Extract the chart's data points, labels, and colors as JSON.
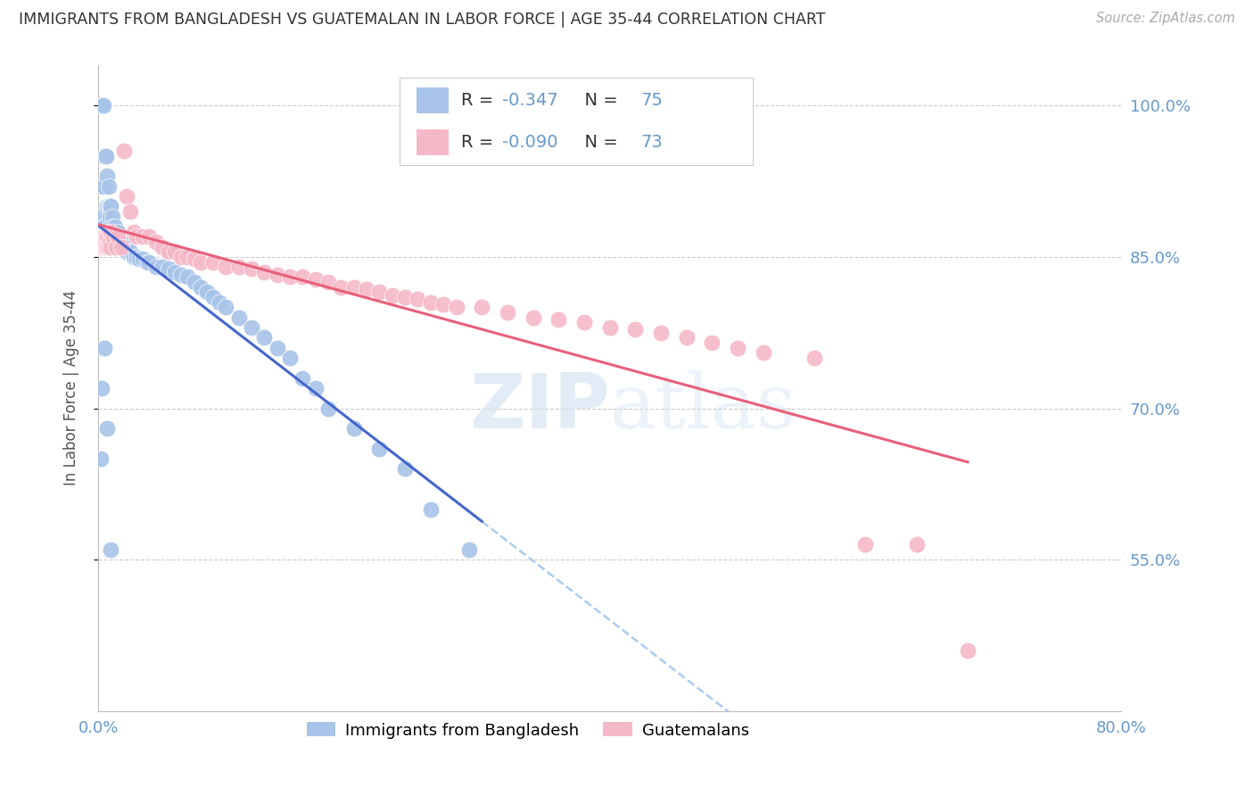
{
  "title": "IMMIGRANTS FROM BANGLADESH VS GUATEMALAN IN LABOR FORCE | AGE 35-44 CORRELATION CHART",
  "source": "Source: ZipAtlas.com",
  "ylabel": "In Labor Force | Age 35-44",
  "xmin": 0.0,
  "xmax": 0.8,
  "ymin": 0.4,
  "ymax": 1.04,
  "yticks": [
    0.55,
    0.7,
    0.85,
    1.0
  ],
  "ytick_labels": [
    "55.0%",
    "70.0%",
    "85.0%",
    "100.0%"
  ],
  "xticks": [
    0.0,
    0.2,
    0.4,
    0.6,
    0.8
  ],
  "xtick_labels": [
    "0.0%",
    "",
    "",
    "",
    "80.0%"
  ],
  "legend_r_bangladesh": "-0.347",
  "legend_n_bangladesh": "75",
  "legend_r_guatemalan": "-0.090",
  "legend_n_guatemalan": "73",
  "blue_color": "#a8c4e8",
  "pink_color": "#f5b8c8",
  "blue_line_color": "#4466cc",
  "pink_line_color": "#e8607a",
  "dashed_line_color": "#aaccee",
  "watermark_color": "#d0e0f0",
  "axis_color": "#bbbbbb",
  "grid_color": "#cccccc",
  "right_label_color": "#6699cc",
  "title_color": "#333333",
  "bangladesh_x": [
    0.001,
    0.002,
    0.002,
    0.003,
    0.003,
    0.004,
    0.004,
    0.005,
    0.005,
    0.005,
    0.006,
    0.006,
    0.007,
    0.007,
    0.007,
    0.008,
    0.008,
    0.008,
    0.009,
    0.009,
    0.009,
    0.01,
    0.01,
    0.01,
    0.011,
    0.011,
    0.012,
    0.012,
    0.013,
    0.013,
    0.014,
    0.015,
    0.015,
    0.016,
    0.017,
    0.018,
    0.02,
    0.022,
    0.025,
    0.028,
    0.03,
    0.032,
    0.035,
    0.038,
    0.04,
    0.045,
    0.05,
    0.055,
    0.06,
    0.065,
    0.07,
    0.075,
    0.08,
    0.085,
    0.09,
    0.095,
    0.1,
    0.11,
    0.12,
    0.13,
    0.14,
    0.15,
    0.16,
    0.17,
    0.18,
    0.2,
    0.22,
    0.24,
    0.26,
    0.29,
    0.002,
    0.003,
    0.005,
    0.007,
    0.01
  ],
  "bangladesh_y": [
    0.87,
    1.0,
    0.92,
    1.0,
    0.89,
    1.0,
    0.88,
    0.95,
    0.92,
    0.88,
    0.95,
    0.87,
    0.93,
    0.9,
    0.87,
    0.92,
    0.9,
    0.87,
    0.9,
    0.89,
    0.86,
    0.9,
    0.88,
    0.86,
    0.89,
    0.87,
    0.88,
    0.87,
    0.88,
    0.87,
    0.87,
    0.875,
    0.86,
    0.87,
    0.86,
    0.865,
    0.86,
    0.855,
    0.855,
    0.85,
    0.85,
    0.848,
    0.848,
    0.845,
    0.845,
    0.84,
    0.84,
    0.838,
    0.835,
    0.832,
    0.83,
    0.825,
    0.82,
    0.815,
    0.81,
    0.805,
    0.8,
    0.79,
    0.78,
    0.77,
    0.76,
    0.75,
    0.73,
    0.72,
    0.7,
    0.68,
    0.66,
    0.64,
    0.6,
    0.56,
    0.65,
    0.72,
    0.76,
    0.68,
    0.56
  ],
  "guatemalan_x": [
    0.001,
    0.002,
    0.002,
    0.003,
    0.003,
    0.004,
    0.004,
    0.005,
    0.005,
    0.006,
    0.006,
    0.007,
    0.007,
    0.008,
    0.008,
    0.009,
    0.01,
    0.01,
    0.012,
    0.014,
    0.015,
    0.018,
    0.02,
    0.022,
    0.025,
    0.028,
    0.03,
    0.035,
    0.04,
    0.045,
    0.05,
    0.055,
    0.06,
    0.065,
    0.07,
    0.075,
    0.08,
    0.09,
    0.1,
    0.11,
    0.12,
    0.13,
    0.14,
    0.15,
    0.16,
    0.17,
    0.18,
    0.19,
    0.2,
    0.21,
    0.22,
    0.23,
    0.24,
    0.25,
    0.26,
    0.27,
    0.28,
    0.3,
    0.32,
    0.34,
    0.36,
    0.38,
    0.4,
    0.42,
    0.44,
    0.46,
    0.48,
    0.5,
    0.52,
    0.56,
    0.6,
    0.64,
    0.68
  ],
  "guatemalan_y": [
    0.87,
    0.87,
    0.86,
    0.87,
    0.86,
    0.87,
    0.86,
    0.87,
    0.86,
    0.87,
    0.86,
    0.87,
    0.86,
    0.875,
    0.86,
    0.865,
    0.875,
    0.86,
    0.87,
    0.86,
    0.87,
    0.86,
    0.955,
    0.91,
    0.895,
    0.875,
    0.87,
    0.87,
    0.87,
    0.865,
    0.86,
    0.855,
    0.855,
    0.85,
    0.85,
    0.848,
    0.845,
    0.845,
    0.84,
    0.84,
    0.838,
    0.835,
    0.832,
    0.83,
    0.83,
    0.828,
    0.825,
    0.82,
    0.82,
    0.818,
    0.815,
    0.812,
    0.81,
    0.808,
    0.805,
    0.803,
    0.8,
    0.8,
    0.795,
    0.79,
    0.788,
    0.785,
    0.78,
    0.778,
    0.775,
    0.77,
    0.765,
    0.76,
    0.755,
    0.75,
    0.565,
    0.565,
    0.46
  ]
}
